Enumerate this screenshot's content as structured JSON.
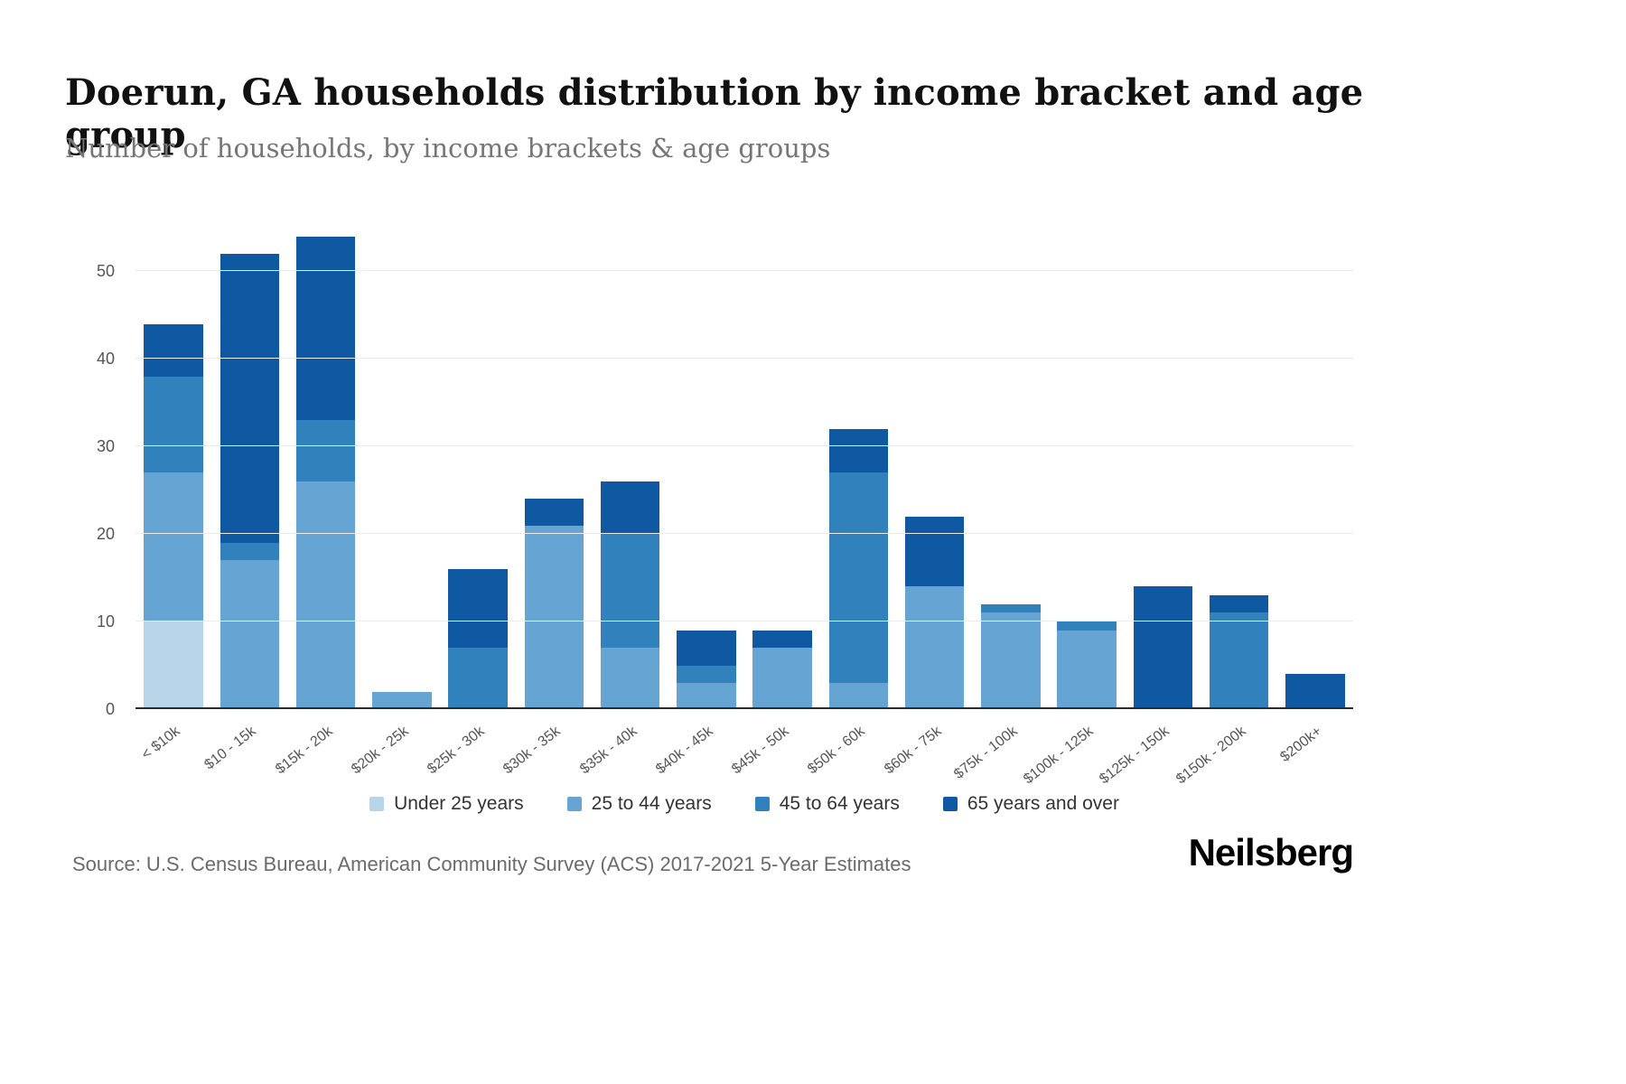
{
  "header": {
    "title": "Doerun, GA households distribution by income bracket and age group",
    "subtitle": "Number of households, by income brackets & age groups"
  },
  "footer": {
    "source": "Source: U.S. Census Bureau, American Community Survey (ACS) 2017-2021 5-Year Estimates",
    "brand": "Neilsberg"
  },
  "chart_data": {
    "type": "bar",
    "stacked": true,
    "title": "Doerun, GA households distribution by income bracket and age group",
    "xlabel": "",
    "ylabel": "Number of households",
    "ymax": 55,
    "yticks": [
      0,
      10,
      20,
      30,
      40,
      50
    ],
    "grid": true,
    "legend_position": "bottom",
    "categories": [
      "< $10k",
      "$10 - 15k",
      "$15k - 20k",
      "$20k - 25k",
      "$25k - 30k",
      "$30k - 35k",
      "$35k - 40k",
      "$40k - 45k",
      "$45k - 50k",
      "$50k - 60k",
      "$60k - 75k",
      "$75k - 100k",
      "$100k - 125k",
      "$125k - 150k",
      "$150k - 200k",
      "$200k+"
    ],
    "series": [
      {
        "name": "Under 25 years",
        "color": "#b9d5e9",
        "values": [
          10,
          0,
          0,
          0,
          0,
          0,
          0,
          0,
          0,
          0,
          0,
          0,
          0,
          0,
          0,
          0
        ]
      },
      {
        "name": "25 to 44 years",
        "color": "#66a5d3",
        "values": [
          17,
          17,
          26,
          2,
          0,
          21,
          7,
          3,
          7,
          3,
          14,
          11,
          9,
          0,
          0,
          0
        ]
      },
      {
        "name": "45 to 64 years",
        "color": "#3181bd",
        "values": [
          11,
          2,
          7,
          0,
          7,
          0,
          13,
          2,
          0,
          24,
          0,
          1,
          1,
          0,
          11,
          0
        ]
      },
      {
        "name": "65 years and over",
        "color": "#0f59a3",
        "values": [
          6,
          33,
          21,
          0,
          9,
          3,
          6,
          4,
          2,
          5,
          8,
          0,
          0,
          14,
          2,
          4
        ]
      }
    ],
    "totals": [
      44,
      52,
      54,
      2,
      16,
      24,
      26,
      9,
      9,
      32,
      22,
      12,
      10,
      14,
      13,
      4
    ]
  }
}
